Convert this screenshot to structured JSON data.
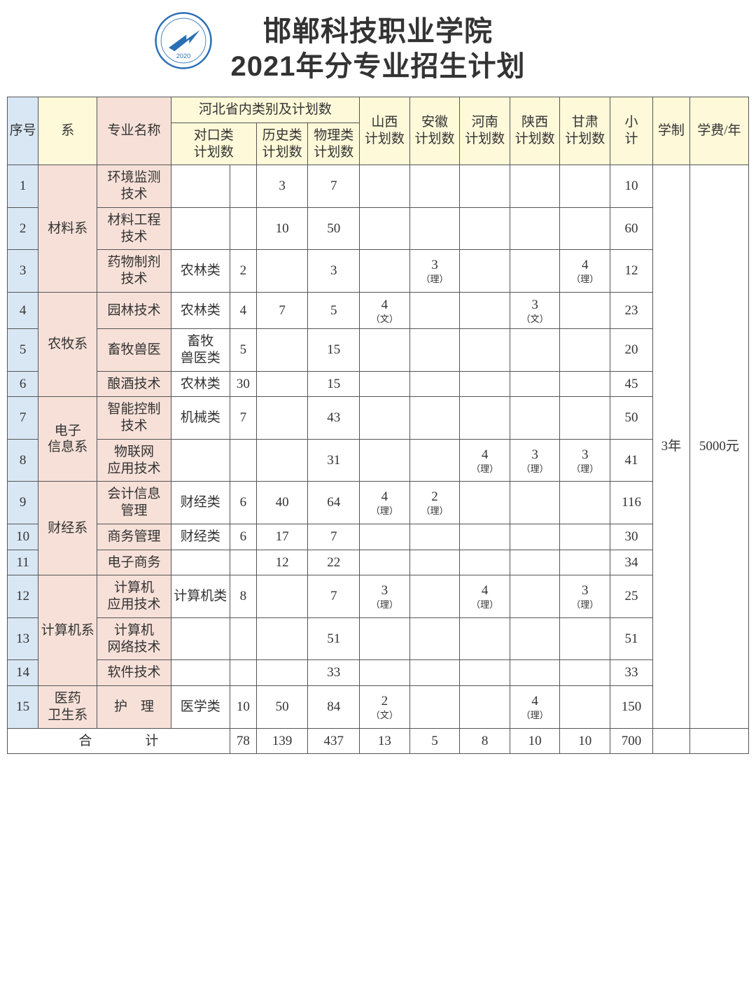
{
  "colors": {
    "header_blue": "#d9e7f5",
    "header_yellow": "#fdf9d9",
    "header_pink": "#f6e0d8",
    "border": "#555555",
    "background": "#ffffff",
    "text": "#333333"
  },
  "header": {
    "title_line1": "邯郸科技职业学院",
    "title_line2": "2021年分专业招生计划",
    "logo_year": "2020"
  },
  "table": {
    "headers": {
      "index": "序号",
      "dept": "系",
      "major": "专业名称",
      "hebei_group": "河北省内类别及计划数",
      "dk_num": "对口类\n计划数",
      "hist_num": "历史类\n计划数",
      "phys_num": "物理类\n计划数",
      "shanxi": "山西\n计划数",
      "anhui": "安徽\n计划数",
      "henan": "河南\n计划数",
      "shaanxi": "陕西\n计划数",
      "gansu": "甘肃\n计划数",
      "subtotal": "小\n计",
      "xuezhi": "学制",
      "fee": "学费/年"
    },
    "xuezhi_value": "3年",
    "fee_value": "5000元",
    "totals_label": "合　　　　计",
    "totals": {
      "dk_num": "78",
      "hist": "139",
      "phys": "437",
      "shanxi": "13",
      "anhui": "5",
      "henan": "8",
      "shaanxi": "10",
      "gansu": "10",
      "subtotal": "700"
    },
    "depts": [
      {
        "name": "材料系",
        "rowspan": 3
      },
      {
        "name": "农牧系",
        "rowspan": 3
      },
      {
        "name": "电子\n信息系",
        "rowspan": 2
      },
      {
        "name": "财经系",
        "rowspan": 3
      },
      {
        "name": "计算机系",
        "rowspan": 3
      },
      {
        "name": "医药\n卫生系",
        "rowspan": 1
      }
    ],
    "rows": [
      {
        "idx": "1",
        "dept": 0,
        "major": "环境监测\n技术",
        "dk_cat": "",
        "dk_num": "",
        "hist": "3",
        "phys": "7",
        "shanxi": "",
        "anhui": "",
        "henan": "",
        "shaanxi": "",
        "gansu": "",
        "sub": "10"
      },
      {
        "idx": "2",
        "major": "材料工程\n技术",
        "dk_cat": "",
        "dk_num": "",
        "hist": "10",
        "phys": "50",
        "shanxi": "",
        "anhui": "",
        "henan": "",
        "shaanxi": "",
        "gansu": "",
        "sub": "60"
      },
      {
        "idx": "3",
        "major": "药物制剂\n技术",
        "dk_cat": "农林类",
        "dk_num": "2",
        "hist": "",
        "phys": "3",
        "shanxi": "",
        "anhui": "3",
        "anhui_note": "（理）",
        "henan": "",
        "shaanxi": "",
        "gansu": "4",
        "gansu_note": "（理）",
        "sub": "12"
      },
      {
        "idx": "4",
        "dept": 1,
        "major": "园林技术",
        "dk_cat": "农林类",
        "dk_num": "4",
        "hist": "7",
        "phys": "5",
        "shanxi": "4",
        "shanxi_note": "（文）",
        "anhui": "",
        "henan": "",
        "shaanxi": "3",
        "shaanxi_note": "（文）",
        "gansu": "",
        "sub": "23"
      },
      {
        "idx": "5",
        "major": "畜牧兽医",
        "dk_cat": "畜牧\n兽医类",
        "dk_num": "5",
        "hist": "",
        "phys": "15",
        "shanxi": "",
        "anhui": "",
        "henan": "",
        "shaanxi": "",
        "gansu": "",
        "sub": "20"
      },
      {
        "idx": "6",
        "major": "酿酒技术",
        "dk_cat": "农林类",
        "dk_num": "30",
        "hist": "",
        "phys": "15",
        "shanxi": "",
        "anhui": "",
        "henan": "",
        "shaanxi": "",
        "gansu": "",
        "sub": "45"
      },
      {
        "idx": "7",
        "dept": 2,
        "major": "智能控制\n技术",
        "dk_cat": "机械类",
        "dk_num": "7",
        "hist": "",
        "phys": "43",
        "shanxi": "",
        "anhui": "",
        "henan": "",
        "shaanxi": "",
        "gansu": "",
        "sub": "50"
      },
      {
        "idx": "8",
        "major": "物联网\n应用技术",
        "dk_cat": "",
        "dk_num": "",
        "hist": "",
        "phys": "31",
        "shanxi": "",
        "anhui": "",
        "henan": "4",
        "henan_note": "（理）",
        "shaanxi": "3",
        "shaanxi_note": "（理）",
        "gansu": "3",
        "gansu_note": "（理）",
        "sub": "41"
      },
      {
        "idx": "9",
        "dept": 3,
        "major": "会计信息\n管理",
        "dk_cat": "财经类",
        "dk_num": "6",
        "hist": "40",
        "phys": "64",
        "shanxi": "4",
        "shanxi_note": "（理）",
        "anhui": "2",
        "anhui_note": "（理）",
        "henan": "",
        "shaanxi": "",
        "gansu": "",
        "sub": "116"
      },
      {
        "idx": "10",
        "major": "商务管理",
        "dk_cat": "财经类",
        "dk_num": "6",
        "hist": "17",
        "phys": "7",
        "shanxi": "",
        "anhui": "",
        "henan": "",
        "shaanxi": "",
        "gansu": "",
        "sub": "30"
      },
      {
        "idx": "11",
        "major": "电子商务",
        "dk_cat": "",
        "dk_num": "",
        "hist": "12",
        "phys": "22",
        "shanxi": "",
        "anhui": "",
        "henan": "",
        "shaanxi": "",
        "gansu": "",
        "sub": "34"
      },
      {
        "idx": "12",
        "dept": 4,
        "major": "计算机\n应用技术",
        "dk_cat": "计算机类",
        "dk_num": "8",
        "hist": "",
        "phys": "7",
        "shanxi": "3",
        "shanxi_note": "（理）",
        "anhui": "",
        "henan": "4",
        "henan_note": "（理）",
        "shaanxi": "",
        "gansu": "3",
        "gansu_note": "（理）",
        "sub": "25"
      },
      {
        "idx": "13",
        "major": "计算机\n网络技术",
        "dk_cat": "",
        "dk_num": "",
        "hist": "",
        "phys": "51",
        "shanxi": "",
        "anhui": "",
        "henan": "",
        "shaanxi": "",
        "gansu": "",
        "sub": "51"
      },
      {
        "idx": "14",
        "major": "软件技术",
        "dk_cat": "",
        "dk_num": "",
        "hist": "",
        "phys": "33",
        "shanxi": "",
        "anhui": "",
        "henan": "",
        "shaanxi": "",
        "gansu": "",
        "sub": "33"
      },
      {
        "idx": "15",
        "dept": 5,
        "major": "护　理",
        "dk_cat": "医学类",
        "dk_num": "10",
        "hist": "50",
        "phys": "84",
        "shanxi": "2",
        "shanxi_note": "（文）",
        "anhui": "",
        "henan": "",
        "shaanxi": "4",
        "shaanxi_note": "（理）",
        "gansu": "",
        "sub": "150"
      }
    ]
  }
}
